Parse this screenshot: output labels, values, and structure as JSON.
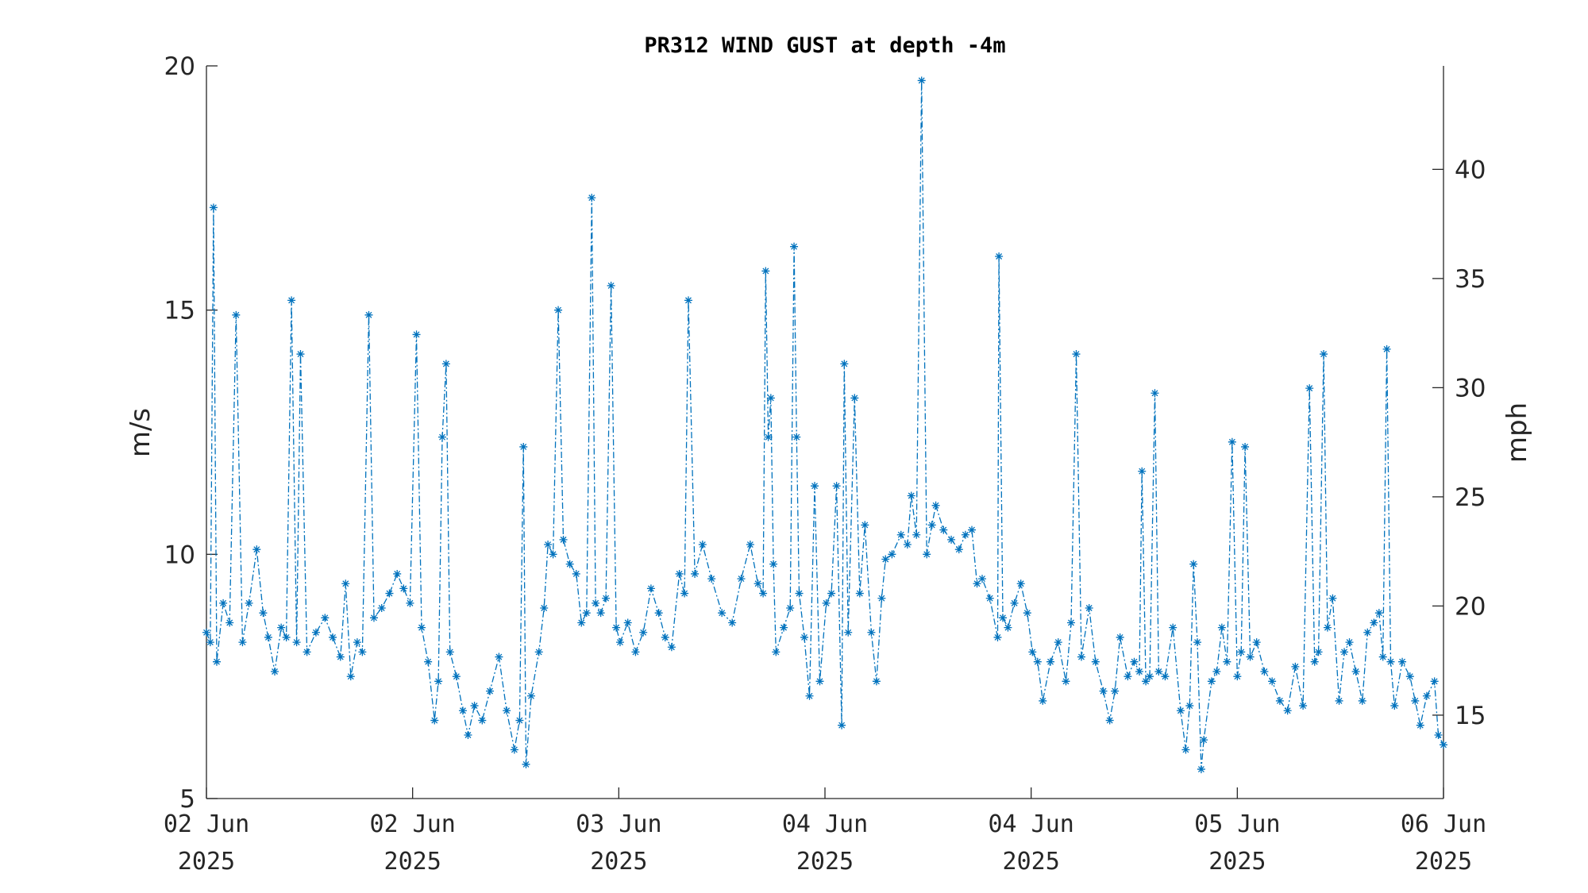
{
  "chart_data": {
    "type": "line",
    "title": "PR312 WIND GUST at depth -4m",
    "ylabel": "m/s",
    "y2label": "mph",
    "xlim": [
      0,
      96
    ],
    "xticks": [
      {
        "value": 0,
        "label": "02 Jun\n2025"
      },
      {
        "value": 16,
        "label": "02 Jun\n2025"
      },
      {
        "value": 32,
        "label": "03 Jun\n2025"
      },
      {
        "value": 48,
        "label": "04 Jun\n2025"
      },
      {
        "value": 64,
        "label": "04 Jun\n2025"
      },
      {
        "value": 80,
        "label": "05 Jun\n2025"
      },
      {
        "value": 96,
        "label": "06 Jun\n2025"
      }
    ],
    "ylim": [
      5,
      20
    ],
    "yticks": [
      5,
      10,
      15,
      20
    ],
    "y2lim": [
      11.18,
      44.74
    ],
    "y2ticks": [
      15,
      20,
      25,
      30,
      35,
      40
    ],
    "series": [
      {
        "name": "wind gust",
        "color": "#0072bd",
        "x": [
          0,
          0.3,
          0.55,
          0.8,
          1.3,
          1.8,
          2.3,
          2.8,
          3.3,
          3.9,
          4.4,
          4.8,
          5.3,
          5.8,
          6.2,
          6.6,
          7.0,
          7.3,
          7.8,
          8.5,
          9.2,
          9.8,
          10.4,
          10.8,
          11.2,
          11.7,
          12.1,
          12.6,
          13.0,
          13.6,
          14.2,
          14.8,
          15.3,
          15.8,
          16.3,
          16.7,
          17.2,
          17.7,
          18.0,
          18.3,
          18.6,
          18.9,
          19.4,
          19.9,
          20.3,
          20.8,
          21.4,
          22.0,
          22.7,
          23.3,
          23.9,
          24.3,
          24.6,
          24.8,
          25.2,
          25.8,
          26.2,
          26.5,
          26.9,
          27.3,
          27.7,
          28.2,
          28.7,
          29.1,
          29.5,
          29.9,
          30.2,
          30.6,
          31.0,
          31.4,
          31.8,
          32.1,
          32.7,
          33.3,
          33.9,
          34.5,
          35.1,
          35.6,
          36.1,
          36.7,
          37.1,
          37.4,
          37.9,
          38.5,
          39.2,
          40.0,
          40.8,
          41.5,
          42.2,
          42.8,
          43.2,
          43.4,
          43.6,
          43.8,
          44.0,
          44.2,
          44.8,
          45.3,
          45.6,
          45.8,
          46.0,
          46.4,
          46.8,
          47.2,
          47.6,
          48.1,
          48.5,
          48.9,
          49.3,
          49.5,
          49.8,
          50.3,
          50.7,
          51.1,
          51.6,
          52.0,
          52.4,
          52.7,
          53.2,
          53.9,
          54.4,
          54.7,
          55.1,
          55.5,
          55.9,
          56.3,
          56.6,
          57.2,
          57.8,
          58.4,
          58.9,
          59.4,
          59.8,
          60.2,
          60.8,
          61.4,
          61.5,
          61.8,
          62.2,
          62.7,
          63.2,
          63.7,
          64.1,
          64.5,
          64.9,
          65.5,
          66.1,
          66.7,
          67.1,
          67.5,
          67.9,
          68.5,
          69.0,
          69.6,
          70.1,
          70.5,
          70.9,
          71.5,
          72.0,
          72.4,
          72.6,
          72.9,
          73.2,
          73.6,
          73.9,
          74.4,
          75.0,
          75.6,
          76.0,
          76.3,
          76.6,
          76.9,
          77.2,
          77.4,
          78.0,
          78.4,
          78.8,
          79.2,
          79.6,
          80.0,
          80.3,
          80.6,
          81.0,
          81.5,
          82.1,
          82.7,
          83.3,
          83.9,
          84.5,
          85.1,
          85.6,
          86.0,
          86.3,
          86.7,
          87.0,
          87.4,
          87.9,
          88.3,
          88.7,
          89.2,
          89.7,
          90.1,
          90.6,
          91.0,
          91.3,
          91.6,
          91.9,
          92.2,
          92.8,
          93.4,
          93.8,
          94.2,
          94.7,
          95.3,
          95.6,
          96.0
        ],
        "values": [
          8.4,
          8.2,
          17.1,
          7.8,
          9.0,
          8.6,
          14.9,
          8.2,
          9.0,
          10.1,
          8.8,
          8.3,
          7.6,
          8.5,
          8.3,
          15.2,
          8.2,
          14.1,
          8.0,
          8.4,
          8.7,
          8.3,
          7.9,
          9.4,
          7.5,
          8.2,
          8.0,
          14.9,
          8.7,
          8.9,
          9.2,
          9.6,
          9.3,
          9.0,
          14.5,
          8.5,
          7.8,
          6.6,
          7.4,
          12.4,
          13.9,
          8.0,
          7.5,
          6.8,
          6.3,
          6.9,
          6.6,
          7.2,
          7.9,
          6.8,
          6.0,
          6.6,
          12.2,
          5.7,
          7.1,
          8.0,
          8.9,
          10.2,
          10.0,
          15.0,
          10.3,
          9.8,
          9.6,
          8.6,
          8.8,
          17.3,
          9.0,
          8.8,
          9.1,
          15.5,
          8.5,
          8.2,
          8.6,
          8.0,
          8.4,
          9.3,
          8.8,
          8.3,
          8.1,
          9.6,
          9.2,
          15.2,
          9.6,
          10.2,
          9.5,
          8.8,
          8.6,
          9.5,
          10.2,
          9.4,
          9.2,
          15.8,
          12.4,
          13.2,
          9.8,
          8.0,
          8.5,
          8.9,
          16.3,
          12.4,
          9.2,
          8.3,
          7.1,
          11.4,
          7.4,
          9.0,
          9.2,
          11.4,
          6.5,
          13.9,
          8.4,
          13.2,
          9.2,
          10.6,
          8.4,
          7.4,
          9.1,
          9.9,
          10.0,
          10.4,
          10.2,
          11.2,
          10.4,
          19.7,
          10.0,
          10.6,
          11.0,
          10.5,
          10.3,
          10.1,
          10.4,
          10.5,
          9.4,
          9.5,
          9.1,
          8.3,
          16.1,
          8.7,
          8.5,
          9.0,
          9.4,
          8.8,
          8.0,
          7.8,
          7.0,
          7.8,
          8.2,
          7.4,
          8.6,
          14.1,
          7.9,
          8.9,
          7.8,
          7.2,
          6.6,
          7.2,
          8.3,
          7.5,
          7.8,
          7.6,
          11.7,
          7.4,
          7.5,
          13.3,
          7.6,
          7.5,
          8.5,
          6.8,
          6.0,
          6.9,
          9.8,
          8.2,
          5.6,
          6.2,
          7.4,
          7.6,
          8.5,
          7.8,
          12.3,
          7.5,
          8.0,
          12.2,
          7.9,
          8.2,
          7.6,
          7.4,
          7.0,
          6.8,
          7.7,
          6.9,
          13.4,
          7.8,
          8.0,
          14.1,
          8.5,
          9.1,
          7.0,
          8.0,
          8.2,
          7.6,
          7.0,
          8.4,
          8.6,
          8.8,
          7.9,
          14.2,
          7.8,
          6.9,
          7.8,
          7.5,
          7.0,
          6.5,
          7.1,
          7.4,
          6.3,
          6.1
        ]
      }
    ]
  }
}
